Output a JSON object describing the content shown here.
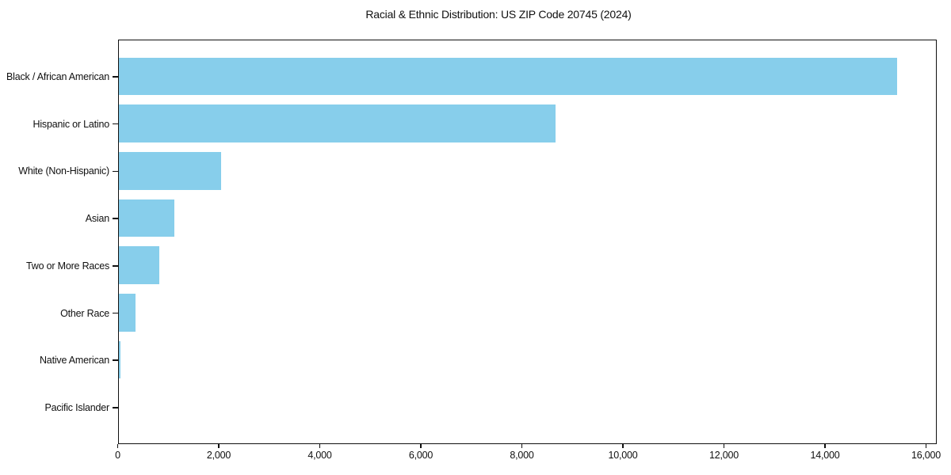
{
  "chart_data": {
    "type": "bar",
    "orientation": "horizontal",
    "title": "Racial & Ethnic Distribution: US ZIP Code 20745 (2024)",
    "categories": [
      "Black / African American",
      "Hispanic or Latino",
      "White (Non-Hispanic)",
      "Asian",
      "Two or More Races",
      "Other Race",
      "Native American",
      "Pacific Islander"
    ],
    "values": [
      15430,
      8680,
      2055,
      1130,
      830,
      360,
      60,
      0
    ],
    "xlabel": "",
    "ylabel": "",
    "xlim": [
      0,
      16200
    ],
    "xticks": [
      0,
      2000,
      4000,
      6000,
      8000,
      10000,
      12000,
      14000,
      16000
    ],
    "xtick_labels": [
      "0",
      "2,000",
      "4,000",
      "6,000",
      "8,000",
      "10,000",
      "12,000",
      "14,000",
      "16,000"
    ],
    "grid": false,
    "legend": "none",
    "bar_color": "#87CEEB"
  },
  "colors": {
    "bar": "#87CEEB",
    "spine": "#101010",
    "text": "#101010",
    "background": "#ffffff"
  }
}
